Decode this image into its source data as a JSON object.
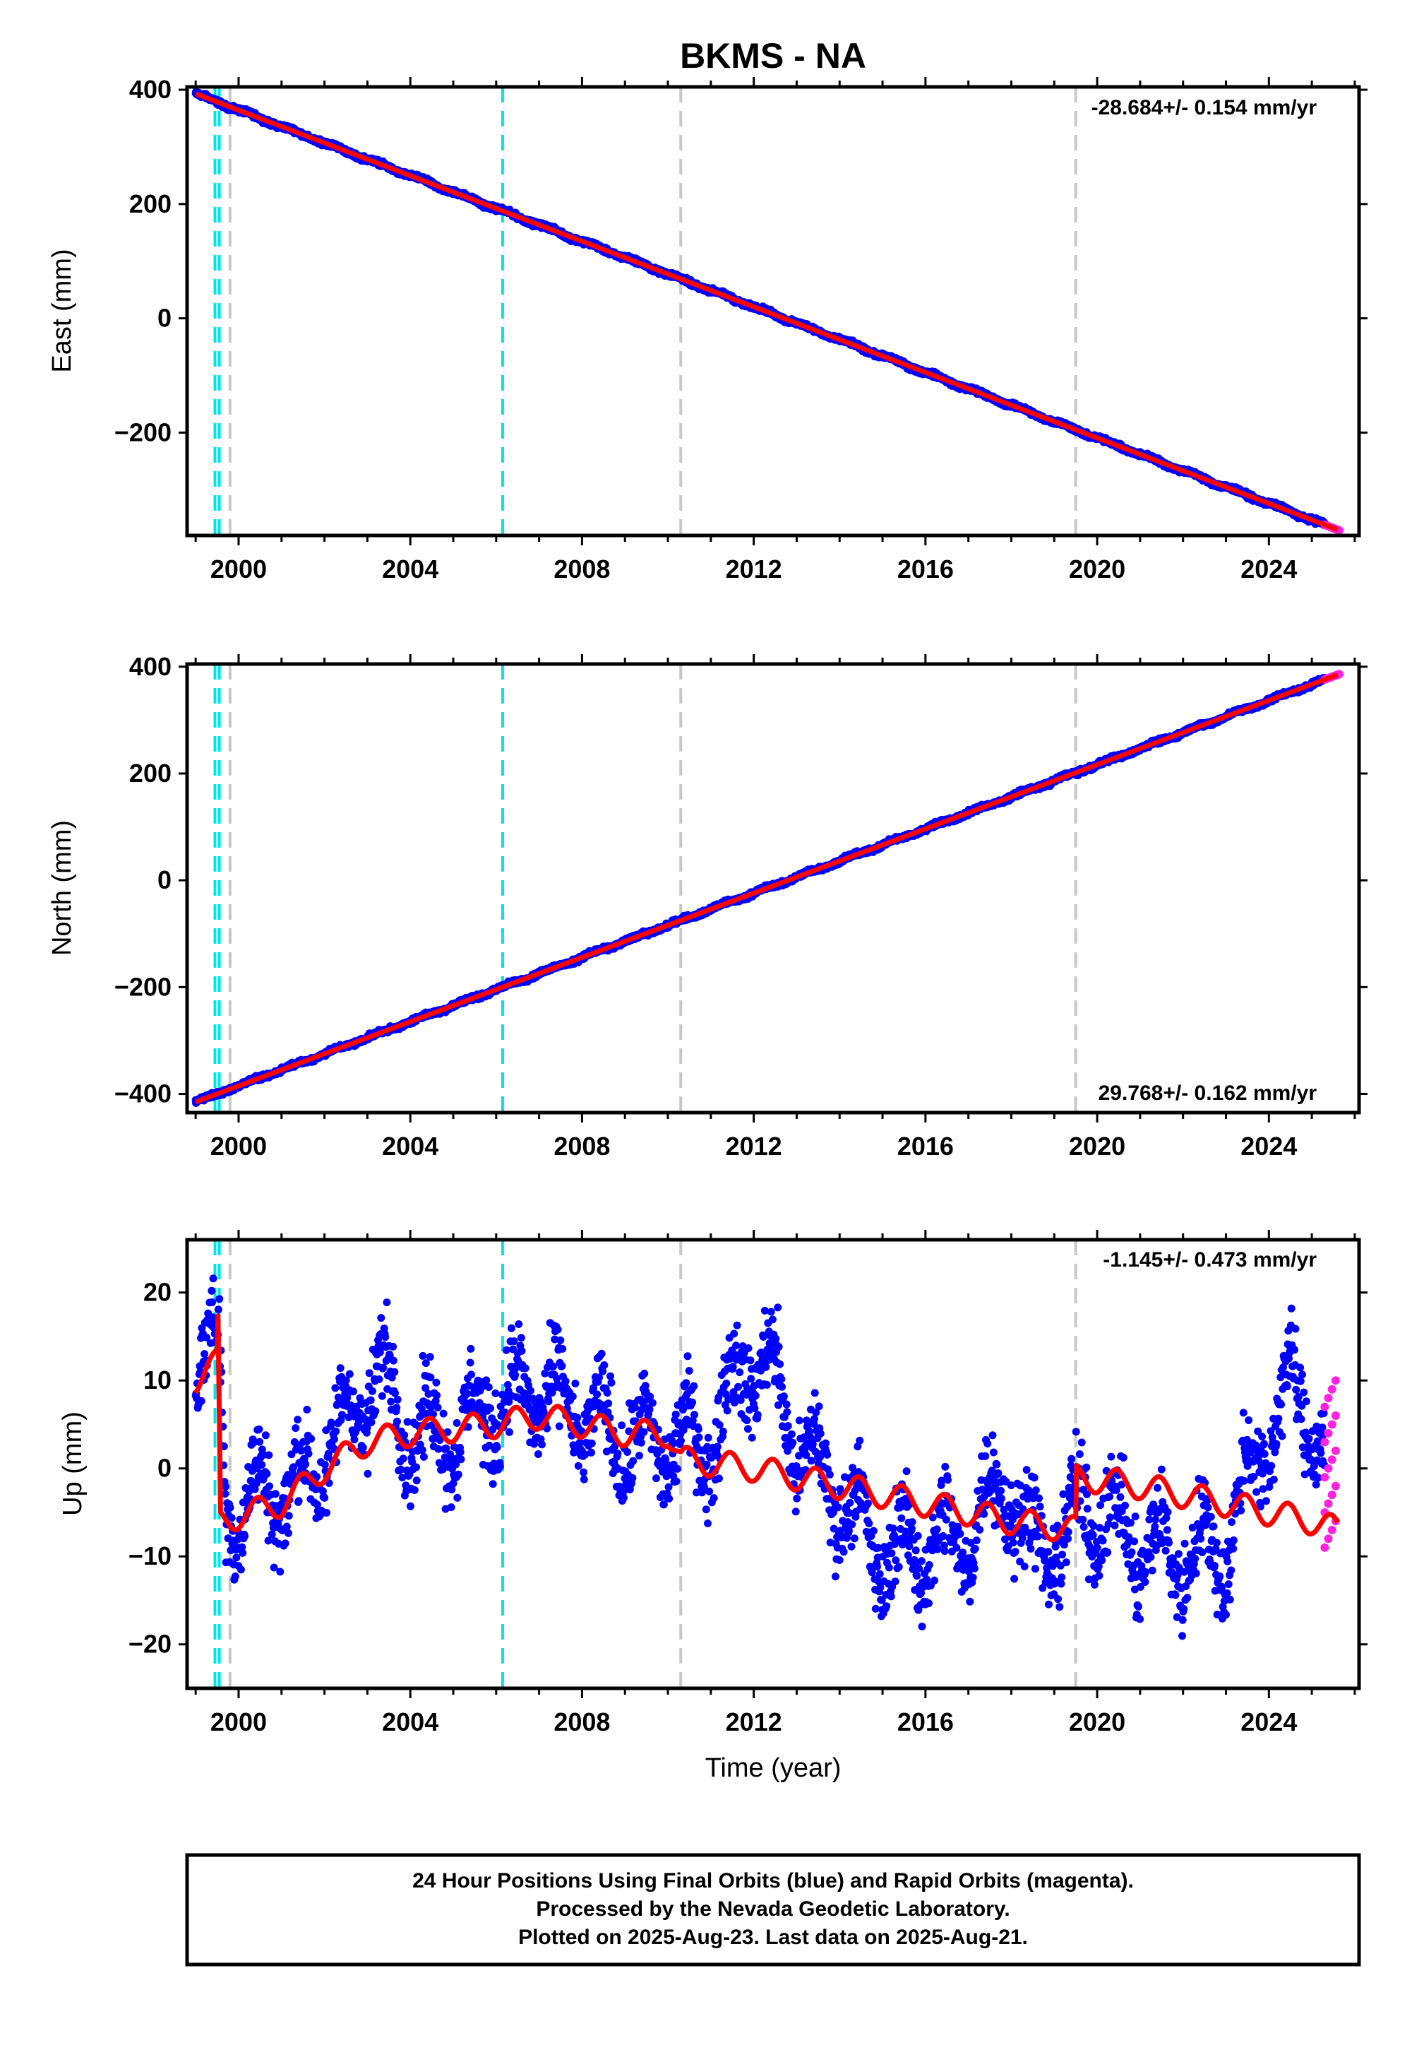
{
  "title": "BKMS - NA",
  "xlabel": "Time (year)",
  "colors": {
    "final": "#0000ff",
    "rapid": "#ff22dd",
    "model": "#ff0000",
    "equipment_change": "#00e5e5",
    "earthquake": "#c8c8c8"
  },
  "xlim": [
    1998.8,
    2026.1
  ],
  "x_ticks": [
    2000,
    2004,
    2008,
    2012,
    2016,
    2020,
    2024
  ],
  "events": {
    "cyan": [
      1999.45,
      1999.55,
      2006.15
    ],
    "gray": [
      1999.8,
      2010.3,
      2019.5
    ]
  },
  "chart_data": [
    {
      "type": "scatter",
      "panel": "east",
      "ylabel": "East (mm)",
      "ylim": [
        -380,
        405
      ],
      "y_ticks": [
        400,
        200,
        0,
        -200
      ],
      "y_tick_labels": [
        "400",
        "200",
        "0",
        "−200"
      ],
      "rate_label": "-28.684+/- 0.154 mm/yr",
      "rate_position": "top-right",
      "series": [
        {
          "name": "Final Orbits (blue)",
          "x_range": [
            1999.0,
            2025.3
          ],
          "trend": {
            "x0": 1999.0,
            "y0": 393,
            "x1": 2025.6,
            "y1": -370
          },
          "noise": 3
        },
        {
          "name": "Rapid Orbits (magenta)",
          "x_range": [
            2025.3,
            2025.64
          ],
          "trend": {
            "x0": 1999.0,
            "y0": 393,
            "x1": 2025.6,
            "y1": -370
          }
        },
        {
          "name": "model",
          "x": [
            1999.0,
            2025.6
          ],
          "y": [
            393,
            -370
          ]
        }
      ]
    },
    {
      "type": "scatter",
      "panel": "north",
      "ylabel": "North (mm)",
      "ylim": [
        -435,
        405
      ],
      "y_ticks": [
        400,
        200,
        0,
        -200,
        -400
      ],
      "y_tick_labels": [
        "400",
        "200",
        "0",
        "−200",
        "−400"
      ],
      "rate_label": "29.768+/- 0.162 mm/yr",
      "rate_position": "bottom-right",
      "series": [
        {
          "name": "Final Orbits (blue)",
          "x_range": [
            1999.0,
            2025.3
          ],
          "trend": {
            "x0": 1999.0,
            "y0": -415,
            "x1": 2025.6,
            "y1": 385
          },
          "noise": 3
        },
        {
          "name": "Rapid Orbits (magenta)",
          "x_range": [
            2025.3,
            2025.64
          ],
          "trend": {
            "x0": 1999.0,
            "y0": -415,
            "x1": 2025.6,
            "y1": 385
          }
        },
        {
          "name": "model",
          "x": [
            1999.0,
            2025.6
          ],
          "y": [
            -415,
            385
          ]
        }
      ]
    },
    {
      "type": "scatter",
      "panel": "up",
      "ylabel": "Up (mm)",
      "ylim": [
        -25,
        26
      ],
      "y_ticks": [
        20,
        10,
        0,
        -10,
        -20
      ],
      "y_tick_labels": [
        "20",
        "10",
        "0",
        "−10",
        "−20"
      ],
      "rate_label": "-1.145+/- 0.473 mm/yr",
      "rate_position": "top-right",
      "series": [
        {
          "name": "Final Orbits (blue)",
          "x_range": [
            1999.0,
            2025.3
          ],
          "centers": [
            [
              1999.0,
              13
            ],
            [
              1999.4,
              14
            ],
            [
              1999.55,
              12
            ],
            [
              1999.7,
              -5
            ],
            [
              2000.5,
              -3
            ],
            [
              2001.5,
              -2
            ],
            [
              2002.5,
              5
            ],
            [
              2003.3,
              11
            ],
            [
              2004.0,
              4
            ],
            [
              2005.0,
              4
            ],
            [
              2006.0,
              7
            ],
            [
              2007.0,
              9
            ],
            [
              2008.0,
              6
            ],
            [
              2009.0,
              3
            ],
            [
              2010.0,
              3
            ],
            [
              2011.0,
              3
            ],
            [
              2011.8,
              12
            ],
            [
              2012.3,
              12
            ],
            [
              2013.0,
              3
            ],
            [
              2014.0,
              -3
            ],
            [
              2015.0,
              -10
            ],
            [
              2016.0,
              -9
            ],
            [
              2017.0,
              -8
            ],
            [
              2017.8,
              -1
            ],
            [
              2018.5,
              -9
            ],
            [
              2019.3,
              -8
            ],
            [
              2019.6,
              -4
            ],
            [
              2020.3,
              -6
            ],
            [
              2021.0,
              -9
            ],
            [
              2022.0,
              -10
            ],
            [
              2023.0,
              -9
            ],
            [
              2023.5,
              -1
            ],
            [
              2024.0,
              4
            ],
            [
              2024.5,
              9
            ],
            [
              2025.0,
              6
            ],
            [
              2025.3,
              1
            ]
          ],
          "seasonal": 4,
          "noise": 3.5
        },
        {
          "name": "Rapid Orbits (magenta)",
          "x_range": [
            2025.3,
            2025.64
          ],
          "y_range": [
            -9,
            10
          ]
        },
        {
          "name": "model",
          "x": [
            1999.0,
            1999.5,
            1999.52,
            1999.58,
            2001.0,
            2002.0,
            2003.0,
            2004.0,
            2006.0,
            2007.0,
            2008.0,
            2009.0,
            2010.0,
            2010.3,
            2012.0,
            2014.0,
            2016.0,
            2018.0,
            2019.5,
            2019.52,
            2021.0,
            2023.0,
            2025.0,
            2025.6
          ],
          "y": [
            10,
            12,
            16,
            -6,
            -4,
            0,
            3,
            4,
            5,
            6,
            5,
            4,
            4,
            1,
            0,
            -2,
            -4,
            -6,
            -7,
            -1,
            -2,
            -4,
            -6,
            -7
          ],
          "seasonal": 1.5
        }
      ]
    }
  ],
  "footer": {
    "line1": "24 Hour Positions Using Final Orbits (blue) and Rapid Orbits (magenta).",
    "line2": "Processed by the Nevada Geodetic Laboratory.",
    "line3": "Plotted on 2025-Aug-23. Last data on 2025-Aug-21."
  }
}
